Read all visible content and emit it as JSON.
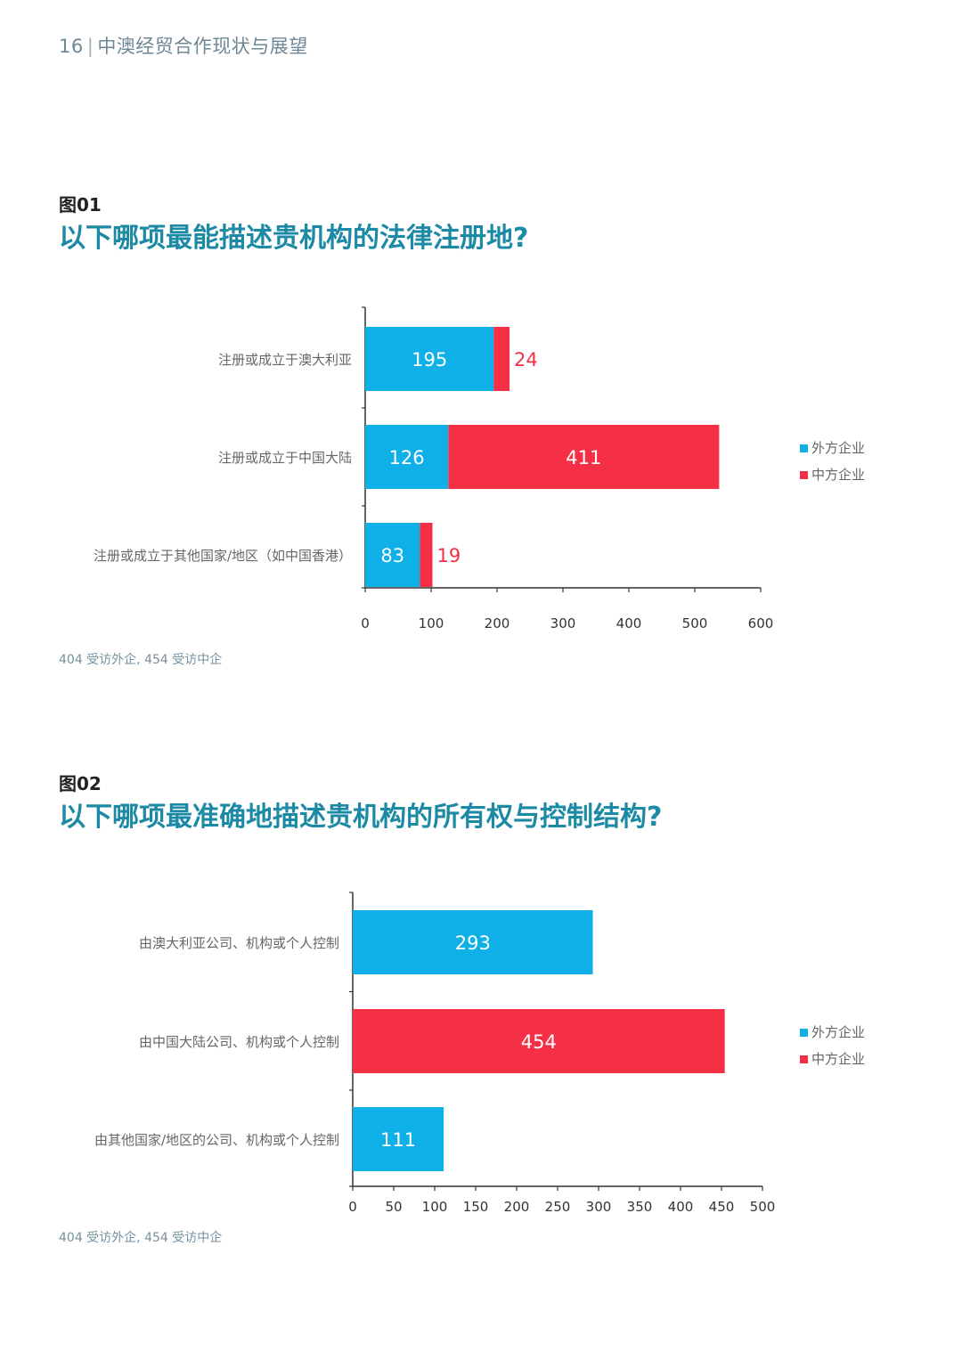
{
  "header": {
    "page_number": "16",
    "separator": "|",
    "doc_title": "中澳经贸合作现状与展望"
  },
  "figures": [
    {
      "label": "图01",
      "title": "以下哪项最能描述贵机构的法律注册地?",
      "note": "404 受访外企, 454 受访中企"
    },
    {
      "label": "图02",
      "title": "以下哪项最准确地描述贵机构的所有权与控制结构?",
      "note": "404 受访外企, 454 受访中企"
    }
  ],
  "colors": {
    "foreign": "#0fb0e8",
    "chinese": "#f52f45",
    "title_accent": "#1c8aa5",
    "label_gray": "#666666"
  },
  "chart_data": [
    {
      "type": "bar",
      "orientation": "horizontal",
      "stacked": true,
      "categories": [
        "注册或成立于澳大利亚",
        "注册或成立于中国大陆",
        "注册或成立于其他国家/地区（如中国香港）"
      ],
      "series": [
        {
          "name": "外方企业",
          "values": [
            195,
            126,
            83
          ],
          "color": "#0fb0e8"
        },
        {
          "name": "中方企业",
          "values": [
            24,
            411,
            19
          ],
          "color": "#f52f45"
        }
      ],
      "xlim": [
        0,
        600
      ],
      "xticks": [
        0,
        100,
        200,
        300,
        400,
        500,
        600
      ],
      "legend_position": "right",
      "grid": false
    },
    {
      "type": "bar",
      "orientation": "horizontal",
      "stacked": true,
      "categories": [
        "由澳大利亚公司、机构或个人控制",
        "由中国大陆公司、机构或个人控制",
        "由其他国家/地区的公司、机构或个人控制"
      ],
      "series": [
        {
          "name": "外方企业",
          "values": [
            293,
            0,
            111
          ],
          "color": "#0fb0e8"
        },
        {
          "name": "中方企业",
          "values": [
            0,
            454,
            0
          ],
          "color": "#f52f45"
        }
      ],
      "xlim": [
        0,
        500
      ],
      "xticks": [
        0,
        50,
        100,
        150,
        200,
        250,
        300,
        350,
        400,
        450,
        500
      ],
      "legend_position": "right",
      "grid": false
    }
  ]
}
